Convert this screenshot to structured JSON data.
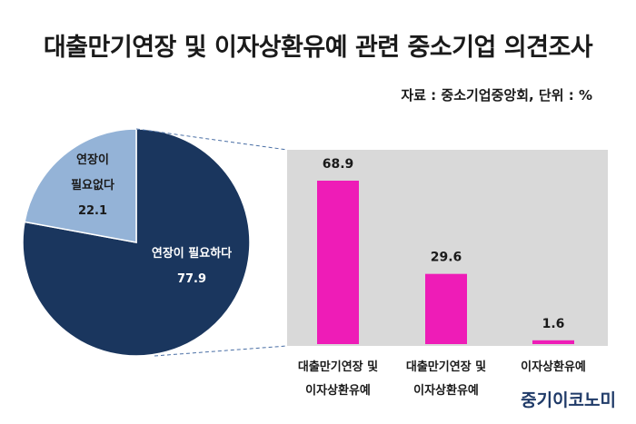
{
  "title": "대출만기연장 및 이자상환유예 관련 중소기업 의견조사",
  "source": "자료 : 중소기업중앙회, 단위 : %",
  "brand": "중기이코노미",
  "colors": {
    "pie_major": "#1a365e",
    "pie_minor": "#94b3d7",
    "bar": "#ee1cb7",
    "panel": "#d9d9d9",
    "connector": "#4a6fa5"
  },
  "chart_data": [
    {
      "type": "pie",
      "slices": [
        {
          "label": "연장이 필요하다",
          "value": 77.9,
          "color": "#1a365e"
        },
        {
          "label": "연장이 필요없다",
          "value": 22.1,
          "color": "#94b3d7"
        }
      ]
    },
    {
      "type": "bar",
      "categories": [
        "대출만기연장 및 이자상환유예",
        "대출만기연장 및 이자상환유예",
        "이자상환유예"
      ],
      "category_lines": [
        [
          "대출만기연장 및",
          "이자상환유예"
        ],
        [
          "대출만기연장 및",
          "이자상환유예"
        ],
        [
          "이자상환유예"
        ]
      ],
      "values": [
        68.9,
        29.6,
        1.6
      ],
      "value_labels": [
        "68.9",
        "29.6",
        "1.6"
      ],
      "ylim": [
        0,
        80
      ],
      "color": "#ee1cb7"
    }
  ]
}
